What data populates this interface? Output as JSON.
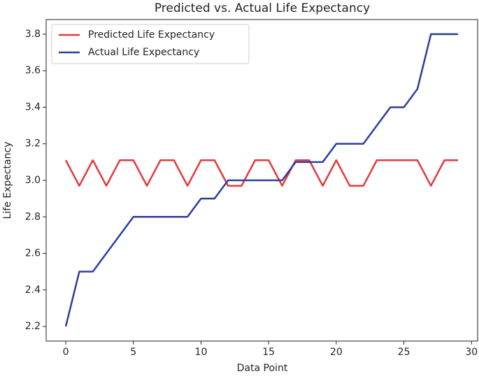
{
  "chart_data": {
    "type": "line",
    "title": "Predicted vs. Actual Life Expectancy",
    "x_label": "Data Point",
    "y_label": "Life Expectancy",
    "x": [
      0,
      1,
      2,
      3,
      4,
      5,
      6,
      7,
      8,
      9,
      10,
      11,
      12,
      13,
      14,
      15,
      16,
      17,
      18,
      19,
      20,
      21,
      22,
      23,
      24,
      25,
      26,
      27,
      28,
      29
    ],
    "series": [
      {
        "name": "Predicted Life Expectancy",
        "color": "#e5383b",
        "values": [
          3.11,
          2.97,
          3.11,
          2.97,
          3.11,
          3.11,
          2.97,
          3.11,
          3.11,
          2.97,
          3.11,
          3.11,
          2.97,
          2.97,
          3.11,
          3.11,
          2.97,
          3.11,
          3.11,
          2.97,
          3.11,
          2.97,
          2.97,
          3.11,
          3.11,
          3.11,
          3.11,
          2.97,
          3.11,
          3.11
        ]
      },
      {
        "name": "Actual Life Expectancy",
        "color": "#2b3f9c",
        "values": [
          2.2,
          2.5,
          2.5,
          2.6,
          2.7,
          2.8,
          2.8,
          2.8,
          2.8,
          2.8,
          2.9,
          2.9,
          3.0,
          3.0,
          3.0,
          3.0,
          3.0,
          3.1,
          3.1,
          3.1,
          3.2,
          3.2,
          3.2,
          3.3,
          3.4,
          3.4,
          3.5,
          3.8,
          3.8,
          3.8
        ]
      }
    ],
    "xlim": [
      -1.45,
      30.45
    ],
    "xticks": [
      0,
      5,
      10,
      15,
      20,
      25,
      30
    ],
    "ylim": [
      2.12,
      3.88
    ],
    "yticks": [
      2.2,
      2.4,
      2.6,
      2.8,
      {
        "value": 3.0,
        "label": "3.0"
      },
      3.2,
      3.4,
      3.6,
      3.8
    ],
    "legend": "upper left"
  }
}
